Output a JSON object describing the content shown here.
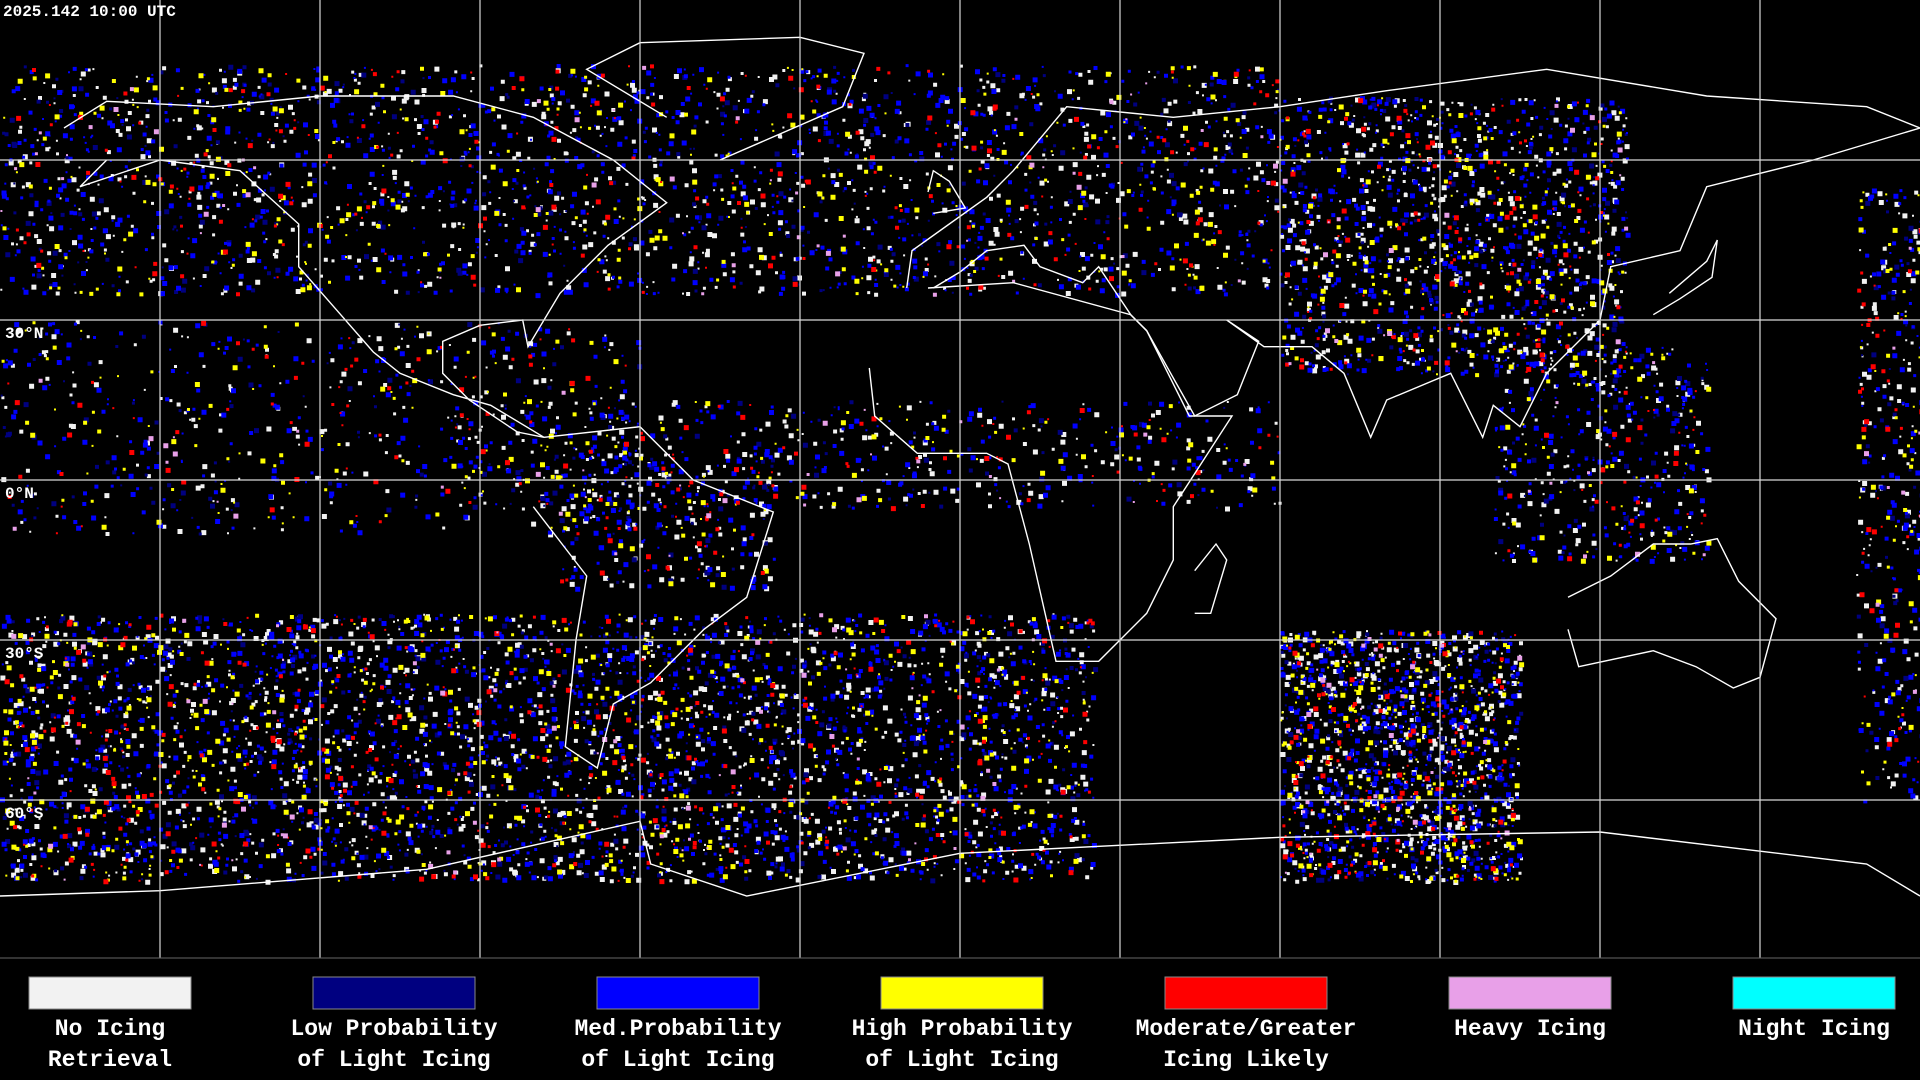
{
  "header": {
    "timestamp": "2025.142 10:00 UTC"
  },
  "map": {
    "latitude_labels": [
      "30°N",
      "0°N",
      "30°S",
      "60°S"
    ]
  },
  "legend": {
    "items": [
      {
        "lines": [
          "No Icing",
          "Retrieval"
        ],
        "color": "#f2f2f2"
      },
      {
        "lines": [
          "Low Probability",
          "of Light Icing"
        ],
        "color": "#000080"
      },
      {
        "lines": [
          "Med.Probability",
          "of Light Icing"
        ],
        "color": "#0000ff"
      },
      {
        "lines": [
          "High Probability",
          "of Light Icing"
        ],
        "color": "#ffff00"
      },
      {
        "lines": [
          "Moderate/Greater",
          "Icing Likely"
        ],
        "color": "#ff0000"
      },
      {
        "lines": [
          "Heavy Icing"
        ],
        "color": "#e8a0e8"
      },
      {
        "lines": [
          "Night Icing"
        ],
        "color": "#00ffff"
      }
    ]
  }
}
